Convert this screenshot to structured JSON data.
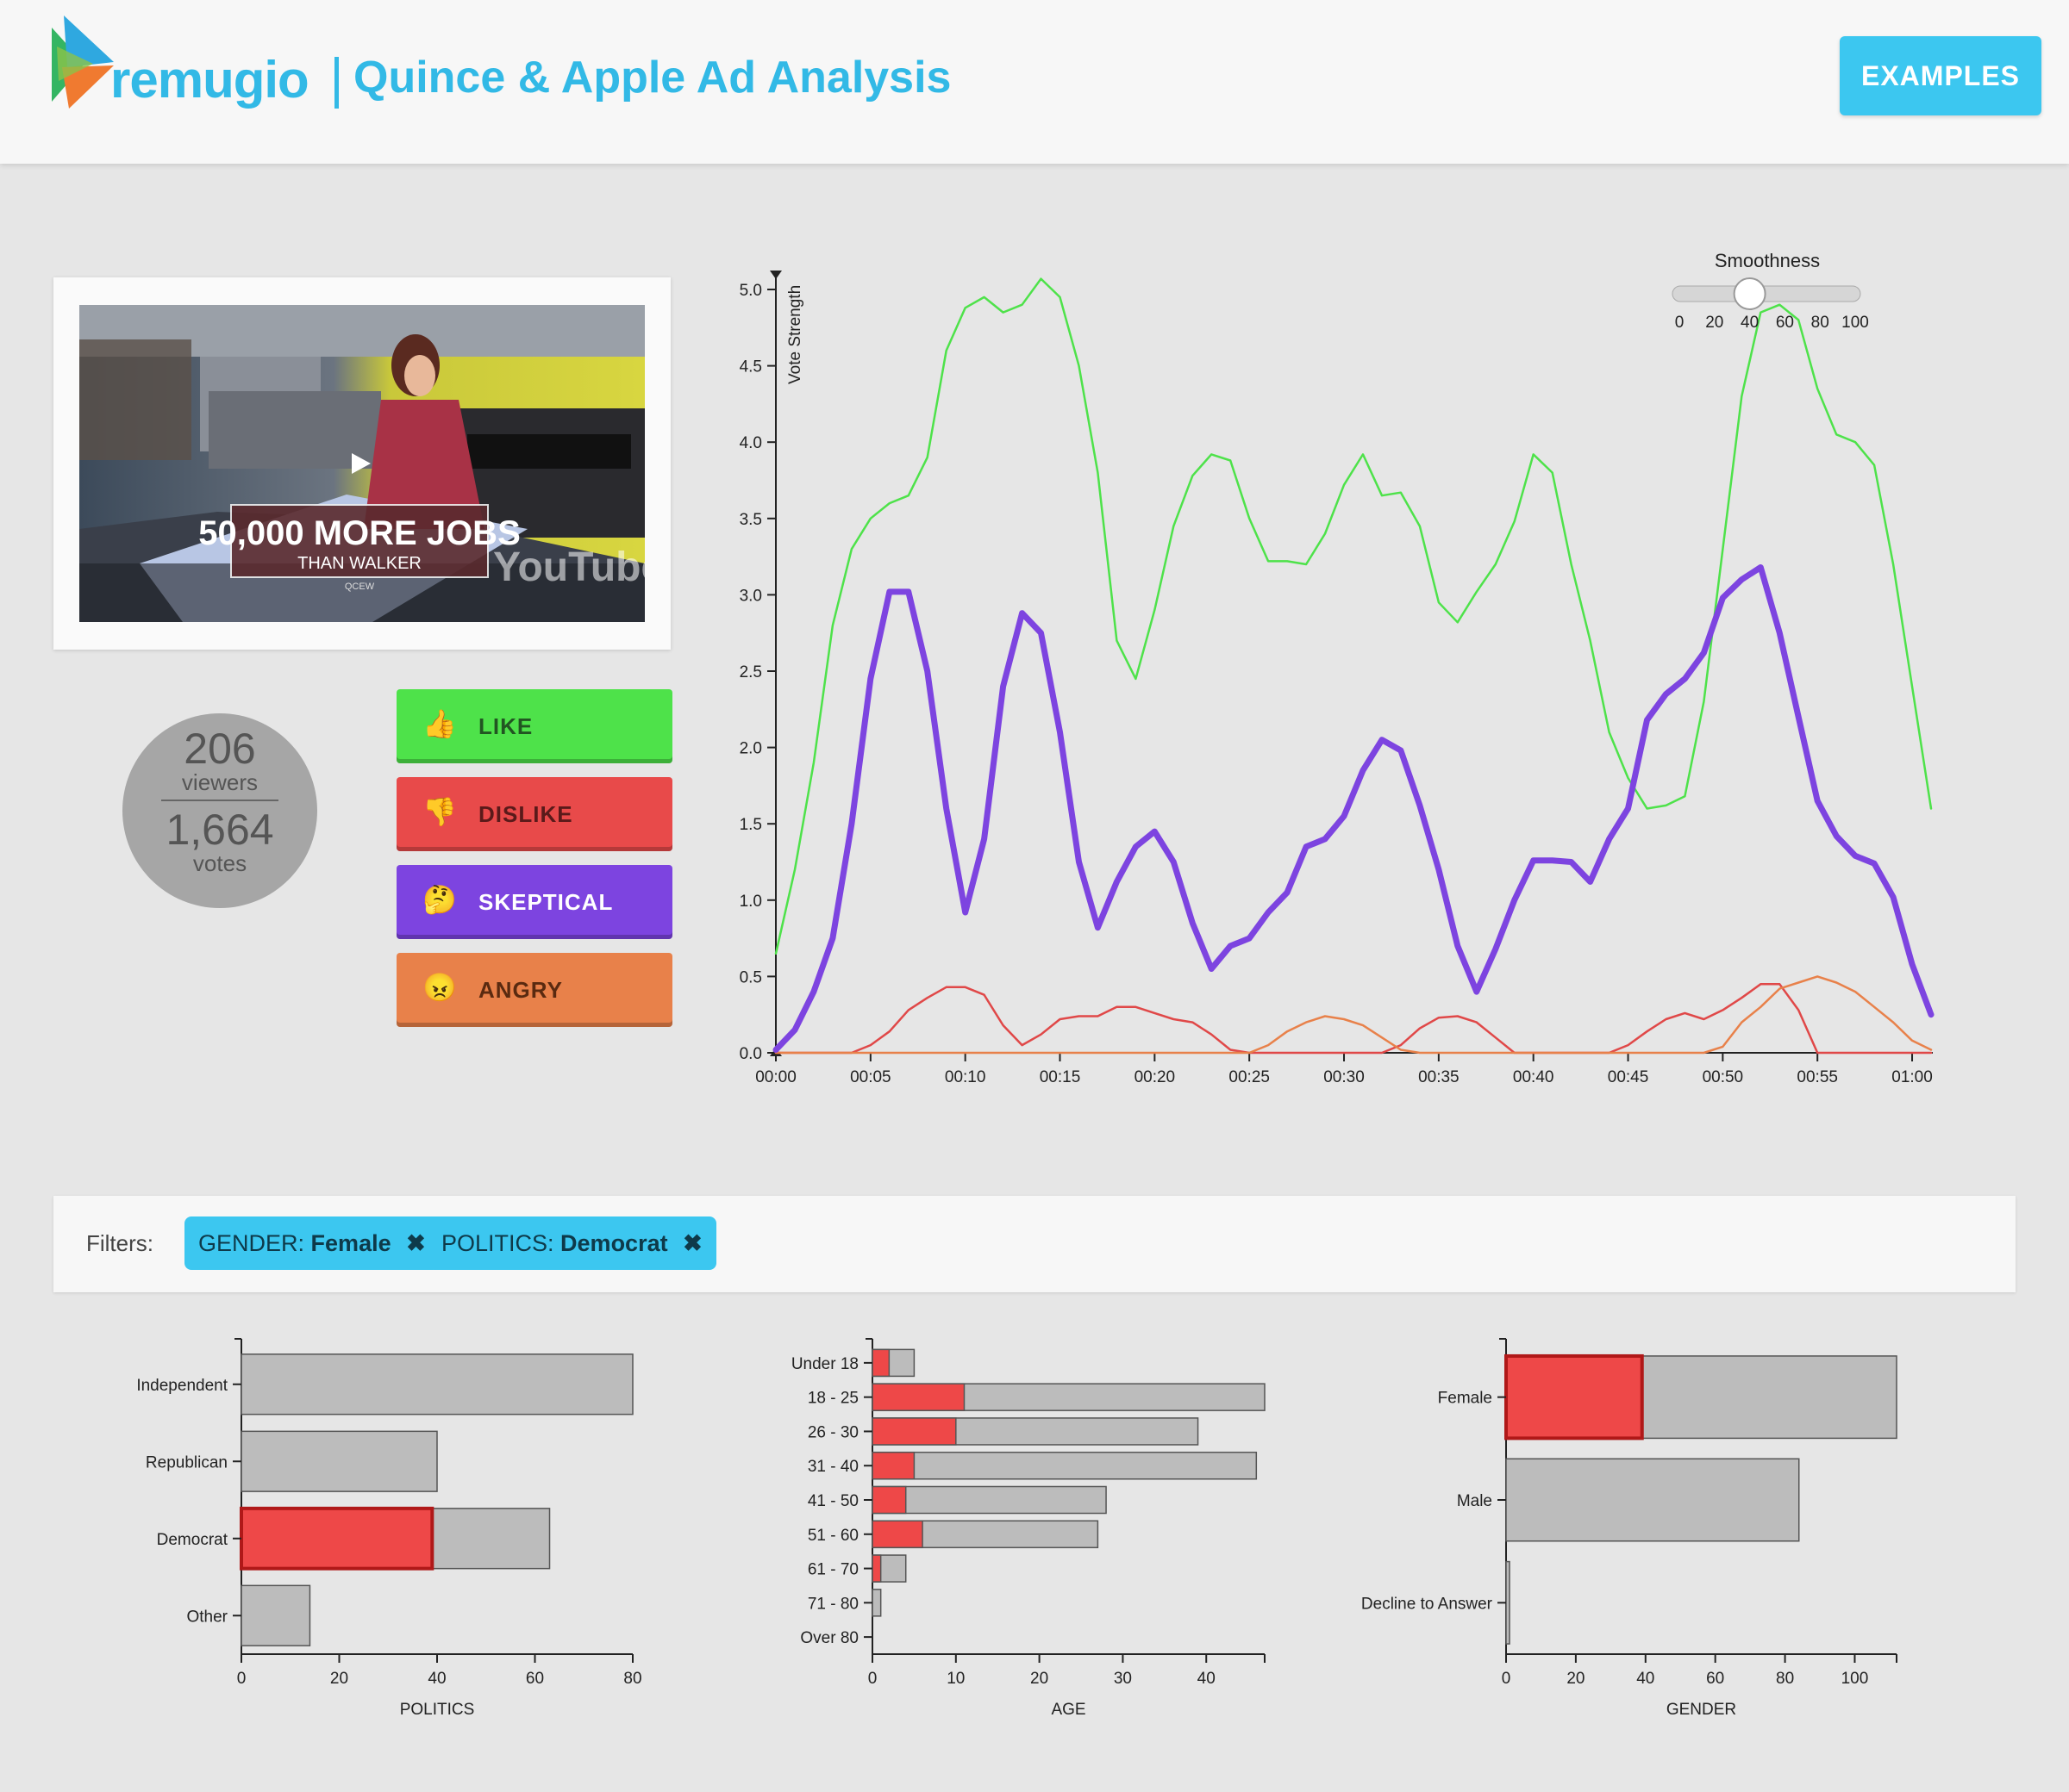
{
  "header": {
    "brand": "remugio",
    "title": "Quince & Apple Ad Analysis",
    "examples_label": "EXAMPLES",
    "colors": {
      "accent": "#32b9e6",
      "button": "#3cc7f0"
    }
  },
  "video": {
    "caption_main": "50,000 MORE JOBS",
    "caption_sub": "THAN WALKER",
    "caption_source": "QCEW",
    "watermark": "YouTube",
    "play_icon": "play-icon"
  },
  "stats": {
    "viewers": "206",
    "viewers_label": "viewers",
    "votes": "1,664",
    "votes_label": "votes"
  },
  "vote_buttons": [
    {
      "label": "LIKE",
      "icon": "thumbs-up-icon",
      "emoji": "👍",
      "color": "#4ee24a"
    },
    {
      "label": "DISLIKE",
      "icon": "thumbs-down-icon",
      "emoji": "👎",
      "color": "#e84a4a"
    },
    {
      "label": "SKEPTICAL",
      "icon": "thinking-face-icon",
      "emoji": "🤔",
      "color": "#7d44e0"
    },
    {
      "label": "ANGRY",
      "icon": "angry-face-icon",
      "emoji": "😠",
      "color": "#e8814a"
    }
  ],
  "smoothness": {
    "label": "Smoothness",
    "ticks": [
      "0",
      "20",
      "40",
      "60",
      "80",
      "100"
    ],
    "value": 40
  },
  "filters": {
    "label": "Filters:",
    "chips": [
      {
        "key": "GENDER:",
        "value": "Female",
        "remove_icon": "close-icon"
      },
      {
        "key": "POLITICS:",
        "value": "Democrat",
        "remove_icon": "close-icon"
      }
    ]
  },
  "chart_data": [
    {
      "type": "line",
      "ylabel": "Vote Strength",
      "ylim": [
        0,
        5
      ],
      "yticks": [
        "0.0",
        "0.5",
        "1.0",
        "1.5",
        "2.0",
        "2.5",
        "3.0",
        "3.5",
        "4.0",
        "4.5",
        "5.0"
      ],
      "xticks": [
        "00:00",
        "00:05",
        "00:10",
        "00:15",
        "00:20",
        "00:25",
        "00:30",
        "00:35",
        "00:40",
        "00:45",
        "00:50",
        "00:55",
        "01:00"
      ],
      "xlim": [
        0,
        61
      ],
      "x": [
        0,
        1,
        2,
        3,
        4,
        5,
        6,
        7,
        8,
        9,
        10,
        11,
        12,
        13,
        14,
        15,
        16,
        17,
        18,
        19,
        20,
        21,
        22,
        23,
        24,
        25,
        26,
        27,
        28,
        29,
        30,
        31,
        32,
        33,
        34,
        35,
        36,
        37,
        38,
        39,
        40,
        41,
        42,
        43,
        44,
        45,
        46,
        47,
        48,
        49,
        50,
        51,
        52,
        53,
        54,
        55,
        56,
        57,
        58,
        59,
        60,
        61
      ],
      "series": [
        {
          "color": "#4ee24a",
          "width": 2.5,
          "values": [
            0.65,
            1.2,
            1.9,
            2.8,
            3.3,
            3.5,
            3.6,
            3.65,
            3.9,
            4.6,
            4.88,
            4.95,
            4.85,
            4.9,
            5.07,
            4.95,
            4.5,
            3.8,
            2.7,
            2.45,
            2.9,
            3.45,
            3.78,
            3.92,
            3.88,
            3.5,
            3.22,
            3.22,
            3.2,
            3.4,
            3.72,
            3.92,
            3.65,
            3.67,
            3.45,
            2.95,
            2.82,
            3.02,
            3.2,
            3.48,
            3.92,
            3.8,
            3.2,
            2.7,
            2.1,
            1.8,
            1.6,
            1.62,
            1.68,
            2.3,
            3.3,
            4.3,
            4.85,
            4.9,
            4.8,
            4.35,
            4.05,
            4.0,
            3.85,
            3.2,
            2.4,
            1.6
          ]
        },
        {
          "color": "#7d44e0",
          "width": 7,
          "values": [
            0.02,
            0.15,
            0.4,
            0.75,
            1.5,
            2.45,
            3.02,
            3.02,
            2.5,
            1.6,
            0.92,
            1.4,
            2.4,
            2.88,
            2.75,
            2.1,
            1.25,
            0.82,
            1.12,
            1.35,
            1.45,
            1.25,
            0.85,
            0.55,
            0.7,
            0.75,
            0.92,
            1.05,
            1.35,
            1.4,
            1.55,
            1.85,
            2.05,
            1.98,
            1.62,
            1.2,
            0.7,
            0.4,
            0.68,
            1.0,
            1.26,
            1.26,
            1.25,
            1.12,
            1.4,
            1.6,
            2.18,
            2.35,
            2.45,
            2.62,
            2.98,
            3.1,
            3.18,
            2.75,
            2.2,
            1.65,
            1.42,
            1.29,
            1.24,
            1.02,
            0.58,
            0.25
          ]
        },
        {
          "color": "#e04848",
          "width": 2.5,
          "values": [
            0,
            0,
            0,
            0,
            0,
            0.05,
            0.14,
            0.28,
            0.36,
            0.43,
            0.43,
            0.38,
            0.18,
            0.05,
            0.12,
            0.22,
            0.24,
            0.24,
            0.3,
            0.3,
            0.26,
            0.22,
            0.2,
            0.12,
            0.02,
            0,
            0,
            0,
            0,
            0,
            0,
            0,
            0,
            0.05,
            0.16,
            0.23,
            0.24,
            0.2,
            0.1,
            0,
            0,
            0,
            0,
            0,
            0,
            0.05,
            0.14,
            0.22,
            0.26,
            0.22,
            0.28,
            0.36,
            0.45,
            0.45,
            0.28,
            0,
            0,
            0,
            0,
            0,
            0,
            0
          ]
        },
        {
          "color": "#e8814a",
          "width": 2.5,
          "values": [
            0,
            0,
            0,
            0,
            0,
            0,
            0,
            0,
            0,
            0,
            0,
            0,
            0,
            0,
            0,
            0,
            0,
            0,
            0,
            0,
            0,
            0,
            0,
            0,
            0,
            0,
            0.05,
            0.14,
            0.2,
            0.24,
            0.22,
            0.18,
            0.1,
            0.02,
            0,
            0,
            0,
            0,
            0,
            0,
            0,
            0,
            0,
            0,
            0,
            0,
            0,
            0,
            0,
            0,
            0.04,
            0.2,
            0.3,
            0.42,
            0.46,
            0.5,
            0.46,
            0.4,
            0.3,
            0.2,
            0.08,
            0.02
          ]
        }
      ]
    },
    {
      "type": "bar",
      "orientation": "horizontal",
      "xlabel": "POLITICS",
      "categories": [
        "Independent",
        "Republican",
        "Democrat",
        "Other"
      ],
      "series": [
        {
          "values": [
            80,
            40,
            63,
            14
          ],
          "color": "#bcbcbc"
        },
        {
          "values": [
            0,
            0,
            39,
            0
          ],
          "color": "#ee4848"
        }
      ],
      "xlim": [
        0,
        80
      ],
      "xticks": [
        "0",
        "20",
        "40",
        "60",
        "80"
      ],
      "selected": "Democrat"
    },
    {
      "type": "bar",
      "orientation": "horizontal",
      "xlabel": "AGE",
      "categories": [
        "Under 18",
        "18 - 25",
        "26 - 30",
        "31 - 40",
        "41 - 50",
        "51 - 60",
        "61 - 70",
        "71 - 80",
        "Over 80"
      ],
      "series": [
        {
          "values": [
            5,
            47,
            39,
            46,
            28,
            27,
            4,
            1,
            0
          ],
          "color": "#bcbcbc"
        },
        {
          "values": [
            2,
            11,
            10,
            5,
            4,
            6,
            1,
            0,
            0
          ],
          "color": "#ee4848"
        }
      ],
      "xlim": [
        0,
        47
      ],
      "xticks": [
        "0",
        "10",
        "20",
        "30",
        "40"
      ]
    },
    {
      "type": "bar",
      "orientation": "horizontal",
      "xlabel": "GENDER",
      "categories": [
        "Female",
        "Male",
        "Decline to Answer"
      ],
      "series": [
        {
          "values": [
            112,
            84,
            1
          ],
          "color": "#bcbcbc"
        },
        {
          "values": [
            39,
            0,
            0
          ],
          "color": "#ee4848"
        }
      ],
      "xlim": [
        0,
        112
      ],
      "xticks": [
        "0",
        "20",
        "40",
        "60",
        "80",
        "100"
      ],
      "selected": "Female"
    }
  ]
}
